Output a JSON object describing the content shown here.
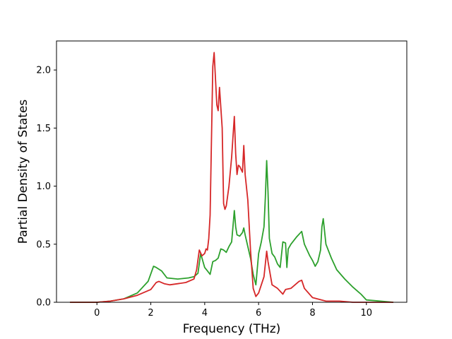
{
  "chart_data": {
    "type": "line",
    "xlabel": "Frequency (THz)",
    "ylabel": "Partial Density of States",
    "xlim": [
      -1.5,
      11.5
    ],
    "ylim": [
      0.0,
      2.25
    ],
    "xticks": [
      0,
      2,
      4,
      6,
      8,
      10
    ],
    "yticks": [
      0.0,
      0.5,
      1.0,
      1.5,
      2.0
    ],
    "x_tick_labels": [
      "0",
      "2",
      "4",
      "6",
      "8",
      "10"
    ],
    "y_tick_labels": [
      "0.0",
      "0.5",
      "1.0",
      "1.5",
      "2.0"
    ],
    "grid": false,
    "series": [
      {
        "color": "#2ca02c",
        "x": [
          -1.0,
          0.0,
          0.5,
          1.0,
          1.5,
          1.9,
          2.1,
          2.2,
          2.4,
          2.6,
          3.0,
          3.4,
          3.6,
          3.75,
          3.85,
          4.0,
          4.1,
          4.2,
          4.3,
          4.4,
          4.5,
          4.6,
          4.7,
          4.8,
          4.9,
          5.0,
          5.1,
          5.15,
          5.2,
          5.3,
          5.4,
          5.45,
          5.5,
          5.6,
          5.7,
          5.8,
          5.9,
          6.0,
          6.1,
          6.2,
          6.25,
          6.3,
          6.35,
          6.4,
          6.5,
          6.6,
          6.7,
          6.8,
          6.9,
          7.0,
          7.05,
          7.1,
          7.2,
          7.4,
          7.6,
          7.7,
          7.9,
          8.0,
          8.1,
          8.2,
          8.3,
          8.35,
          8.4,
          8.5,
          8.7,
          8.9,
          9.2,
          9.5,
          9.8,
          10.0,
          11.0
        ],
        "y": [
          0.0,
          0.0,
          0.01,
          0.03,
          0.08,
          0.18,
          0.31,
          0.3,
          0.27,
          0.21,
          0.2,
          0.21,
          0.22,
          0.25,
          0.42,
          0.3,
          0.27,
          0.24,
          0.35,
          0.36,
          0.38,
          0.46,
          0.45,
          0.43,
          0.48,
          0.52,
          0.79,
          0.65,
          0.58,
          0.57,
          0.6,
          0.64,
          0.58,
          0.48,
          0.38,
          0.24,
          0.15,
          0.42,
          0.52,
          0.65,
          0.9,
          1.22,
          0.95,
          0.55,
          0.42,
          0.39,
          0.33,
          0.3,
          0.52,
          0.51,
          0.3,
          0.46,
          0.5,
          0.56,
          0.61,
          0.5,
          0.4,
          0.36,
          0.31,
          0.35,
          0.45,
          0.65,
          0.72,
          0.5,
          0.38,
          0.28,
          0.2,
          0.13,
          0.07,
          0.02,
          0.0
        ]
      },
      {
        "color": "#d62728",
        "x": [
          -1.0,
          0.0,
          0.5,
          1.0,
          1.5,
          2.0,
          2.2,
          2.3,
          2.5,
          2.7,
          3.0,
          3.3,
          3.6,
          3.7,
          3.8,
          3.9,
          4.0,
          4.05,
          4.1,
          4.15,
          4.2,
          4.3,
          4.35,
          4.45,
          4.5,
          4.55,
          4.65,
          4.7,
          4.75,
          4.8,
          4.9,
          5.0,
          5.1,
          5.15,
          5.2,
          5.25,
          5.3,
          5.4,
          5.45,
          5.5,
          5.6,
          5.7,
          5.8,
          5.9,
          6.0,
          6.2,
          6.3,
          6.35,
          6.5,
          6.7,
          6.9,
          7.0,
          7.2,
          7.5,
          7.6,
          7.7,
          8.0,
          8.5,
          9.0,
          9.5,
          10.0,
          11.0
        ],
        "y": [
          0.0,
          0.0,
          0.01,
          0.03,
          0.06,
          0.11,
          0.17,
          0.18,
          0.16,
          0.15,
          0.16,
          0.17,
          0.2,
          0.28,
          0.45,
          0.4,
          0.42,
          0.46,
          0.45,
          0.55,
          0.75,
          2.03,
          2.15,
          1.7,
          1.65,
          1.85,
          1.5,
          0.85,
          0.8,
          0.83,
          1.0,
          1.25,
          1.6,
          1.28,
          1.1,
          1.18,
          1.17,
          1.12,
          1.35,
          1.1,
          0.88,
          0.45,
          0.12,
          0.05,
          0.08,
          0.22,
          0.44,
          0.35,
          0.15,
          0.12,
          0.07,
          0.11,
          0.12,
          0.18,
          0.19,
          0.12,
          0.04,
          0.01,
          0.01,
          0.0,
          0.0,
          0.0
        ]
      }
    ]
  }
}
